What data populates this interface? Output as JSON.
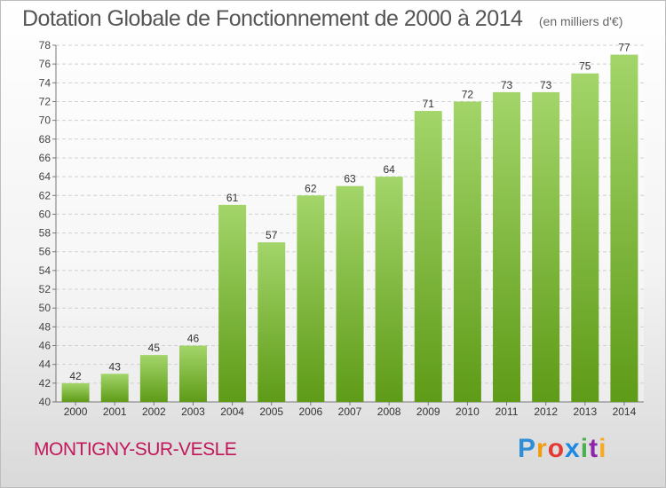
{
  "title": "Dotation Globale de Fonctionnement de 2000 à 2014",
  "subtitle": "(en milliers d'€)",
  "commune": "MONTIGNY-SUR-VESLE",
  "logo": {
    "text": "Proxiti",
    "colors": [
      "#2e8fd6",
      "#f39c12",
      "#e53935",
      "#1e88e5",
      "#4caf50",
      "#8e24aa",
      "#f9a825"
    ]
  },
  "colors": {
    "bar_top": "#a3d56a",
    "bar_bottom": "#5e9b17",
    "title": "#555555",
    "commune": "#c2185b",
    "grid": "#d0d0d0"
  },
  "chart_data": {
    "type": "bar",
    "categories": [
      "2000",
      "2001",
      "2002",
      "2003",
      "2004",
      "2005",
      "2006",
      "2007",
      "2008",
      "2009",
      "2010",
      "2011",
      "2012",
      "2013",
      "2014"
    ],
    "values": [
      42,
      43,
      45,
      46,
      61,
      57,
      62,
      63,
      64,
      71,
      72,
      73,
      73,
      75,
      77
    ],
    "ylim": [
      40,
      78
    ],
    "ytick_step": 2,
    "grid": "horizontal dashed",
    "data_labels": true
  }
}
